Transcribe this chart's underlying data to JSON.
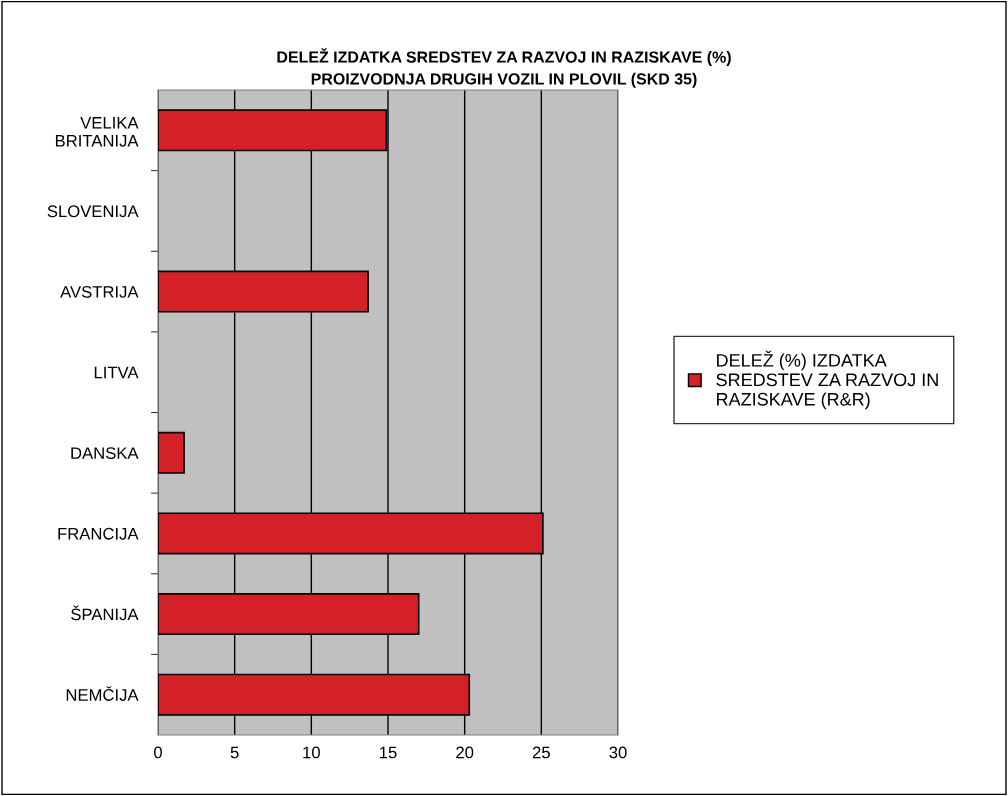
{
  "chart_data": {
    "type": "bar",
    "orientation": "horizontal",
    "title": "DELEŽ IZDATKA SREDSTEV ZA RAZVOJ IN RAZISKAVE (%)\nPROIZVODNJA DRUGIH VOZIL IN PLOVIL (SKD 35)",
    "categories": [
      "VELIKA\nBRITANIJA",
      "SLOVENIJA",
      "AVSTRIJA",
      "LITVA",
      "DANSKA",
      "FRANCIJA",
      "ŠPANIJA",
      "NEMČIJA"
    ],
    "series": [
      {
        "name": "DELEŽ (%) IZDATKA\nSREDSTEV ZA RAZVOJ IN\nRAZISKAVE (R&R)",
        "color": "#d42027",
        "values": [
          14.9,
          null,
          13.7,
          null,
          1.7,
          25.1,
          17.0,
          20.3
        ]
      }
    ],
    "xlim": [
      0,
      30
    ],
    "xticks": [
      0,
      5,
      10,
      15,
      20,
      25,
      30
    ],
    "grid": "x",
    "legend": "right"
  }
}
